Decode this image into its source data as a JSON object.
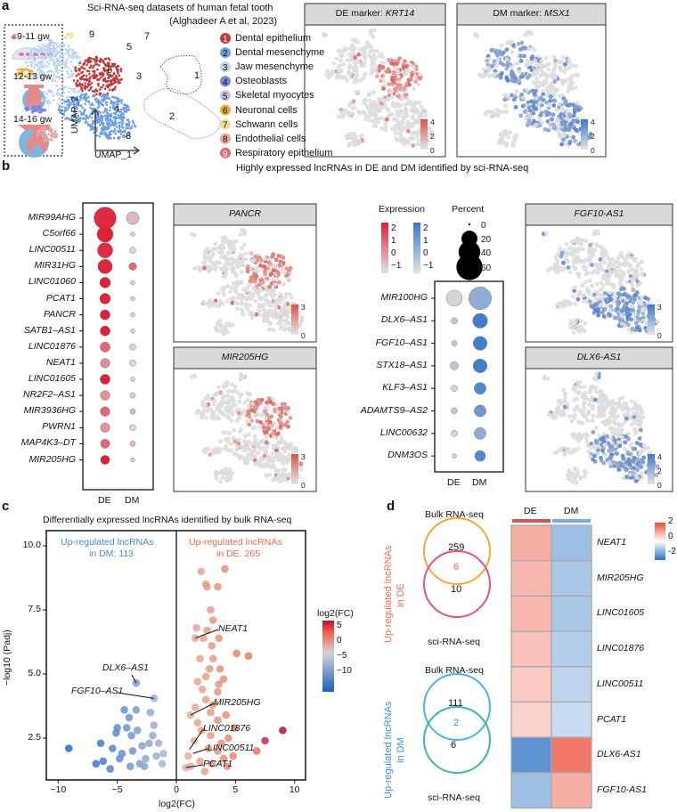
{
  "panel_a": {
    "label": "a",
    "title": "Sci-RNA-seq datasets of human fetal tooth",
    "citation": "(Alghadeer A et al, 2023)",
    "stages": [
      "9-11 gw",
      "12-13 gw",
      "14-16 gw"
    ],
    "umap_x": "UMAP_1",
    "umap_y": "UMAP_2",
    "clusters": [
      {
        "id": "1",
        "name": "Dental epithelium",
        "color": "#c0393b"
      },
      {
        "id": "2",
        "name": "Dental mesenchyme",
        "color": "#6c9ee8"
      },
      {
        "id": "3",
        "name": "Jaw mesenchyme",
        "color": "#bcd4f2"
      },
      {
        "id": "4",
        "name": "Osteoblasts",
        "color": "#7b84dc"
      },
      {
        "id": "5",
        "name": "Skeletal myocytes",
        "color": "#c9bfe9"
      },
      {
        "id": "6",
        "name": "Neuronal cells",
        "color": "#f0a83a"
      },
      {
        "id": "7",
        "name": "Schwann cells",
        "color": "#f7dc94"
      },
      {
        "id": "8",
        "name": "Endothelial cells",
        "color": "#eea1a1"
      },
      {
        "id": "9",
        "name": "Respiratory epithelium",
        "color": "#e06b6b"
      }
    ],
    "marker_panels": [
      {
        "prefix": "DE marker: ",
        "gene": "KRT14",
        "scale": [
          "4",
          "2",
          "0"
        ],
        "color": "#d9534f"
      },
      {
        "prefix": "DM marker: ",
        "gene": "MSX1",
        "scale": [
          "4",
          "2",
          "0"
        ],
        "color": "#3f78c9"
      }
    ]
  },
  "panel_b": {
    "label": "b",
    "title": "Highly expressed lncRNAs in DE and DM identified by sci-RNA-seq",
    "de_genes": [
      "MIR99AHG",
      "C5orf66",
      "LINC00511",
      "MIR31HG",
      "LINC01060",
      "PCAT1",
      "PANCR",
      "SATB1–AS1",
      "LINC01876",
      "NEAT1",
      "LINC01605",
      "NR2F2–AS1",
      "MIR3936HG",
      "PWRN1",
      "MAP4K3–DT",
      "MIR205HG"
    ],
    "de_dots": {
      "DE_percent": [
        62,
        30,
        27,
        24,
        12,
        12,
        10,
        10,
        10,
        9,
        10,
        9,
        9,
        9,
        8,
        8
      ],
      "DE_expr": [
        2.2,
        2.4,
        2.2,
        2.3,
        2.4,
        2.3,
        2.4,
        2.4,
        1.0,
        0.3,
        2.4,
        0.2,
        1.0,
        0.2,
        1.0,
        2.4
      ],
      "DM_percent": [
        18,
        1,
        3,
        5,
        1,
        1,
        1,
        1,
        3,
        3,
        1,
        2,
        2,
        3,
        2,
        1
      ],
      "DM_expr": [
        -0.5,
        -1,
        -1,
        1,
        -1,
        -1,
        -1,
        -1,
        -1,
        -1,
        -1,
        -1,
        -0.5,
        -1,
        -0.5,
        -1
      ]
    },
    "dm_genes": [
      "MIR100HG",
      "DLX6–AS1",
      "FGF10–AS1",
      "STX18–AS1",
      "KLF3–AS1",
      "ADAMTS9–AS2",
      "LINC00632",
      "DNM3OS"
    ],
    "dm_dots": {
      "DE_percent": [
        30,
        3,
        2,
        6,
        3,
        3,
        3,
        1
      ],
      "DE_expr": [
        -1,
        -0.5,
        -0.5,
        -0.5,
        -1,
        -0.5,
        -1,
        -1
      ],
      "DM_percent": [
        65,
        25,
        22,
        22,
        15,
        15,
        15,
        12
      ],
      "DM_expr": [
        0.5,
        2.2,
        2.2,
        2.2,
        1.8,
        1.3,
        0.5,
        1.8
      ]
    },
    "x_labels": [
      "DE",
      "DM"
    ],
    "feature_panels": [
      {
        "gene": "PANCR",
        "scale": [
          "3",
          "0"
        ],
        "color": "#d9534f"
      },
      {
        "gene": "MIR205HG",
        "scale": [
          "3",
          "0"
        ],
        "color": "#d9534f"
      },
      {
        "gene": "FGF10-AS1",
        "scale": [
          "3",
          "0"
        ],
        "color": "#3f78c9"
      },
      {
        "gene": "DLX6-AS1",
        "scale": [
          "4",
          "2",
          "0"
        ],
        "color": "#3f78c9"
      }
    ],
    "legend": {
      "expression_title": "Expression",
      "expression_ticks": [
        "2",
        "1",
        "0",
        "−1"
      ],
      "percent_title": "Percent",
      "percent_ticks": [
        "0",
        "20",
        "40",
        "60"
      ]
    }
  },
  "panel_c": {
    "label": "c",
    "title": "Differentially expressed lncRNAs identified by bulk RNA-seq",
    "dm_annotation": [
      "Up-regulated lncRNAs",
      "in DM: 113"
    ],
    "de_annotation": [
      "Up-regulated lncRNAs",
      "in DE: 265"
    ],
    "dm_color": "#4a86d0",
    "de_color": "#f06b4e",
    "colorbar_title": "log2(FC)",
    "colorbar_ticks": [
      "5",
      "0",
      "−5",
      "−10"
    ],
    "chart_data": {
      "type": "scatter",
      "title": "Differentially expressed lncRNAs identified by bulk RNA-seq",
      "xlabel": "log2(FC)",
      "ylabel": "−log10 (Padj)",
      "xlim": [
        -11,
        11
      ],
      "ylim": [
        1,
        10.5
      ],
      "xticks": [
        "−10",
        "−5",
        "0",
        "5",
        "10"
      ],
      "yticks": [
        "2.5",
        "5.0",
        "7.5",
        "10.0"
      ],
      "labeled_points": [
        {
          "name": "NEAT1",
          "x": 1.6,
          "y": 6.4
        },
        {
          "name": "DLX6–AS1",
          "x": -3.4,
          "y": 4.65
        },
        {
          "name": "FGF10–AS1",
          "x": -1.9,
          "y": 4.05
        },
        {
          "name": "MIR205HG",
          "x": 1.2,
          "y": 3.4
        },
        {
          "name": "LINC01876",
          "x": 1.1,
          "y": 2.05
        },
        {
          "name": "LINC00511",
          "x": 1.4,
          "y": 1.9
        },
        {
          "name": "PCAT1",
          "x": 0.8,
          "y": 1.35
        }
      ],
      "points": [
        [
          -9.1,
          2.1
        ],
        [
          -6.8,
          1.5
        ],
        [
          -6.4,
          2.3
        ],
        [
          -6.2,
          1.6
        ],
        [
          -5.6,
          1.3
        ],
        [
          -5.4,
          2.1
        ],
        [
          -5,
          2.9
        ],
        [
          -5.1,
          2.7
        ],
        [
          -4.8,
          1.7
        ],
        [
          -4.4,
          3.6
        ],
        [
          -4.2,
          2.9
        ],
        [
          -4,
          3.3
        ],
        [
          -3.8,
          2.6
        ],
        [
          -3.7,
          2.0
        ],
        [
          -3.4,
          3.6
        ],
        [
          -3.3,
          2.8
        ],
        [
          -3.1,
          1.5
        ],
        [
          -2.9,
          2.2
        ],
        [
          -2.6,
          1.7
        ],
        [
          -2.3,
          2.3
        ],
        [
          -2.2,
          3.5
        ],
        [
          -2,
          2.6
        ],
        [
          -1.9,
          3.0
        ],
        [
          -1.7,
          1.8
        ],
        [
          -1.5,
          2.3
        ],
        [
          -1.2,
          1.5
        ],
        [
          -1.1,
          1.9
        ],
        [
          -4.6,
          1.9
        ],
        [
          -3.9,
          1.4
        ],
        [
          -2.7,
          1.4
        ],
        [
          -3.4,
          4.65
        ],
        [
          -1.9,
          4.05
        ],
        [
          2.1,
          9.0
        ],
        [
          4.1,
          9.1
        ],
        [
          2.5,
          8.5
        ],
        [
          2.6,
          8.4
        ],
        [
          3.5,
          8.4
        ],
        [
          2.9,
          7.5
        ],
        [
          3.1,
          7.1
        ],
        [
          1.7,
          6.8
        ],
        [
          2.6,
          6.7
        ],
        [
          3.6,
          6.4
        ],
        [
          2.3,
          6.4
        ],
        [
          3.0,
          6.1
        ],
        [
          5.1,
          5.8
        ],
        [
          6.1,
          5.7
        ],
        [
          2.0,
          5.6
        ],
        [
          2.8,
          5.2
        ],
        [
          3.1,
          5.6
        ],
        [
          3.7,
          5.2
        ],
        [
          2.5,
          4.9
        ],
        [
          4.0,
          4.8
        ],
        [
          1.8,
          4.7
        ],
        [
          3.6,
          4.6
        ],
        [
          2.2,
          4.4
        ],
        [
          3.5,
          4.3
        ],
        [
          2.5,
          4.0
        ],
        [
          3.1,
          3.8
        ],
        [
          4.2,
          3.4
        ],
        [
          3.5,
          3.2
        ],
        [
          1.6,
          3.7
        ],
        [
          2.9,
          3.5
        ],
        [
          2.1,
          2.8
        ],
        [
          4.9,
          2.9
        ],
        [
          9.0,
          2.8
        ],
        [
          7.5,
          2.4
        ],
        [
          6.8,
          2.0
        ],
        [
          4.4,
          2.5
        ],
        [
          3.8,
          2.3
        ],
        [
          2.7,
          2.1
        ],
        [
          1.5,
          2.4
        ],
        [
          1.0,
          1.8
        ],
        [
          2.0,
          1.6
        ],
        [
          3.0,
          1.5
        ],
        [
          4.0,
          1.7
        ],
        [
          4.8,
          1.8
        ],
        [
          4.3,
          1.4
        ],
        [
          1.2,
          1.4
        ],
        [
          2.4,
          1.2
        ],
        [
          3.5,
          2.0
        ],
        [
          2.9,
          2.6
        ],
        [
          1.8,
          3.1
        ],
        [
          0.8,
          1.35
        ],
        [
          1.6,
          6.4
        ],
        [
          1.2,
          3.4
        ]
      ]
    }
  },
  "panel_d": {
    "label": "d",
    "bulk_label": "Bulk RNA-seq",
    "sci_label": "sci-RNA-seq",
    "de_venn": {
      "side_label": [
        "Up-regulated lncRNAs",
        "in DE"
      ],
      "bulk_only": "259",
      "overlap": "6",
      "sci_only": "10",
      "color": "#f06b4e"
    },
    "dm_venn": {
      "side_label": [
        "Up-regulated lncRNAs",
        "in DM"
      ],
      "bulk_only": "111",
      "overlap": "2",
      "sci_only": "6",
      "color": "#3b8fd8"
    },
    "heatmap": {
      "columns": [
        "DE",
        "DM"
      ],
      "column_colors": [
        "#c9585a",
        "#7ea6ea"
      ],
      "genes": [
        "NEAT1",
        "MIR205HG",
        "LINC01605",
        "LINC01876",
        "LINC00511",
        "PCAT1",
        "DLX6-AS1",
        "FGF10-AS1"
      ],
      "values": [
        [
          0.9,
          -0.9
        ],
        [
          0.8,
          -0.8
        ],
        [
          0.8,
          -0.8
        ],
        [
          0.7,
          -0.7
        ],
        [
          0.6,
          -0.6
        ],
        [
          0.5,
          -0.5
        ],
        [
          -1.5,
          1.5
        ],
        [
          -0.9,
          0.9
        ]
      ],
      "scale_ticks": [
        "2",
        "0",
        "-2"
      ]
    }
  }
}
